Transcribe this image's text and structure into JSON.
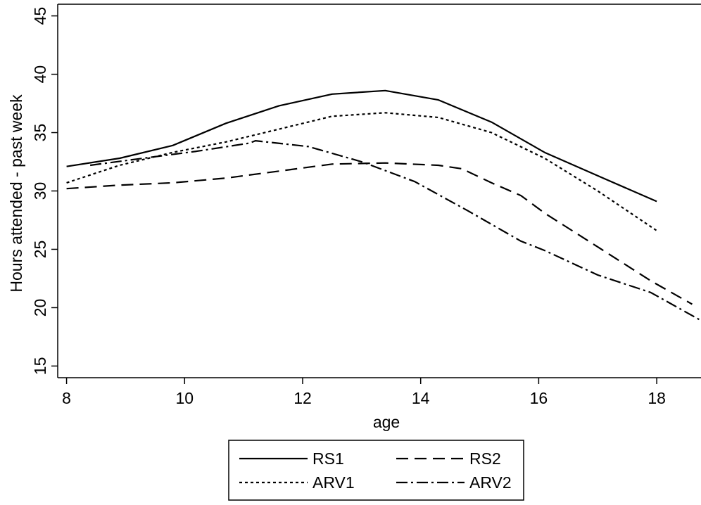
{
  "chart_data": {
    "type": "line",
    "xlabel": "age",
    "ylabel": "Hours attended - past week",
    "xlim": [
      7.85,
      18.75
    ],
    "ylim": [
      14.0,
      46.0
    ],
    "xticks": [
      8,
      10,
      12,
      14,
      16,
      18
    ],
    "yticks": [
      15,
      20,
      25,
      30,
      35,
      40,
      45
    ],
    "grid": false,
    "legend_position": "bottom-center",
    "series": [
      {
        "name": "RS1",
        "style": "solid",
        "x": [
          8.0,
          8.9,
          9.8,
          10.7,
          11.6,
          12.5,
          13.4,
          14.3,
          15.2,
          16.1,
          17.0,
          18.0
        ],
        "y": [
          32.1,
          32.8,
          33.9,
          35.8,
          37.3,
          38.3,
          38.6,
          37.8,
          35.9,
          33.3,
          31.3,
          29.1
        ]
      },
      {
        "name": "RS2",
        "style": "dash",
        "x": [
          8.0,
          8.9,
          9.8,
          10.7,
          11.6,
          12.5,
          13.4,
          14.3,
          14.7,
          15.2,
          15.7,
          16.1,
          17.0,
          17.9,
          18.6
        ],
        "y": [
          30.2,
          30.5,
          30.7,
          31.1,
          31.7,
          32.3,
          32.4,
          32.2,
          31.9,
          30.7,
          29.6,
          28.1,
          25.2,
          22.3,
          20.3
        ]
      },
      {
        "name": "ARV1",
        "style": "dot",
        "x": [
          8.0,
          8.9,
          9.8,
          10.7,
          11.6,
          12.5,
          13.4,
          14.3,
          15.2,
          16.1,
          17.0,
          18.0
        ],
        "y": [
          30.7,
          32.2,
          33.3,
          34.2,
          35.3,
          36.4,
          36.7,
          36.3,
          35.0,
          32.8,
          30.0,
          26.6
        ]
      },
      {
        "name": "ARV2",
        "style": "dashdot",
        "x": [
          8.4,
          9.3,
          10.2,
          11.1,
          11.2,
          12.1,
          13.0,
          13.9,
          14.8,
          15.7,
          16.1,
          17.0,
          17.9,
          18.75
        ],
        "y": [
          32.2,
          32.8,
          33.4,
          34.1,
          34.3,
          33.8,
          32.5,
          30.8,
          28.3,
          25.7,
          24.9,
          22.8,
          21.3,
          18.9
        ]
      }
    ]
  }
}
